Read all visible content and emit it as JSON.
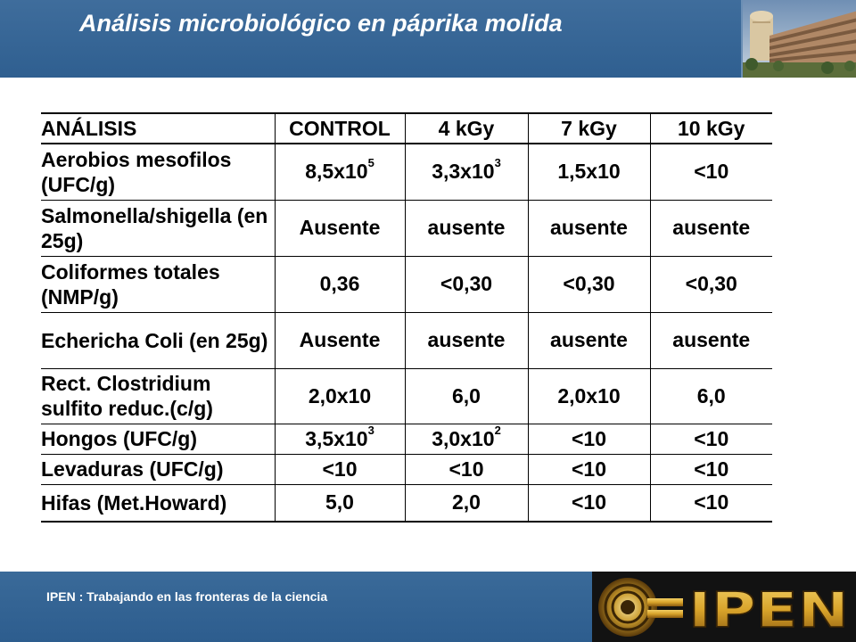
{
  "header": {
    "title": "Análisis microbiológico en páprika molida"
  },
  "table": {
    "columns": [
      "ANÁLISIS",
      "CONTROL",
      "4 kGy",
      "7 kGy",
      "10 kGy"
    ],
    "rows": [
      {
        "label": "Aerobios mesofilos (UFC/g)",
        "values": [
          [
            "8,5x10",
            "5"
          ],
          [
            "3,3x10",
            "3"
          ],
          [
            "1,5x10",
            ""
          ],
          [
            "<10",
            ""
          ]
        ]
      },
      {
        "label": "Salmonella/shigella (en 25g)",
        "values": [
          [
            "Ausente",
            ""
          ],
          [
            "ausente",
            ""
          ],
          [
            "ausente",
            ""
          ],
          [
            "ausente",
            ""
          ]
        ]
      },
      {
        "label": "Coliformes totales (NMP/g)",
        "values": [
          [
            "0,36",
            ""
          ],
          [
            "<0,30",
            ""
          ],
          [
            "<0,30",
            ""
          ],
          [
            "<0,30",
            ""
          ]
        ]
      },
      {
        "label": "Echericha Coli (en 25g)",
        "values": [
          [
            "Ausente",
            ""
          ],
          [
            "ausente",
            ""
          ],
          [
            "ausente",
            ""
          ],
          [
            "ausente",
            ""
          ]
        ]
      },
      {
        "label": "Rect. Clostridium sulfito reduc.(c/g)",
        "values": [
          [
            "2,0x10",
            ""
          ],
          [
            "6,0",
            ""
          ],
          [
            "2,0x10",
            ""
          ],
          [
            "6,0",
            ""
          ]
        ]
      },
      {
        "label": "Hongos (UFC/g)",
        "values": [
          [
            "3,5x10",
            "3"
          ],
          [
            "3,0x10",
            "2"
          ],
          [
            "<10",
            ""
          ],
          [
            "<10",
            ""
          ]
        ]
      },
      {
        "label": "Levaduras (UFC/g)",
        "values": [
          [
            "<10",
            ""
          ],
          [
            "<10",
            ""
          ],
          [
            "<10",
            ""
          ],
          [
            "<10",
            ""
          ]
        ]
      },
      {
        "label": "Hifas (Met.Howard)",
        "values": [
          [
            "5,0",
            ""
          ],
          [
            "2,0",
            ""
          ],
          [
            "<10",
            ""
          ],
          [
            "<10",
            ""
          ]
        ]
      }
    ]
  },
  "footer": {
    "text": "IPEN : Trabajando en las fronteras de la ciencia",
    "logo_text": "IPEN"
  },
  "colors": {
    "header_blue": "#2f5f90",
    "footer_blue": "#2d5d8e",
    "logo_gold": "#d8a32a",
    "text_white": "#ffffff"
  }
}
